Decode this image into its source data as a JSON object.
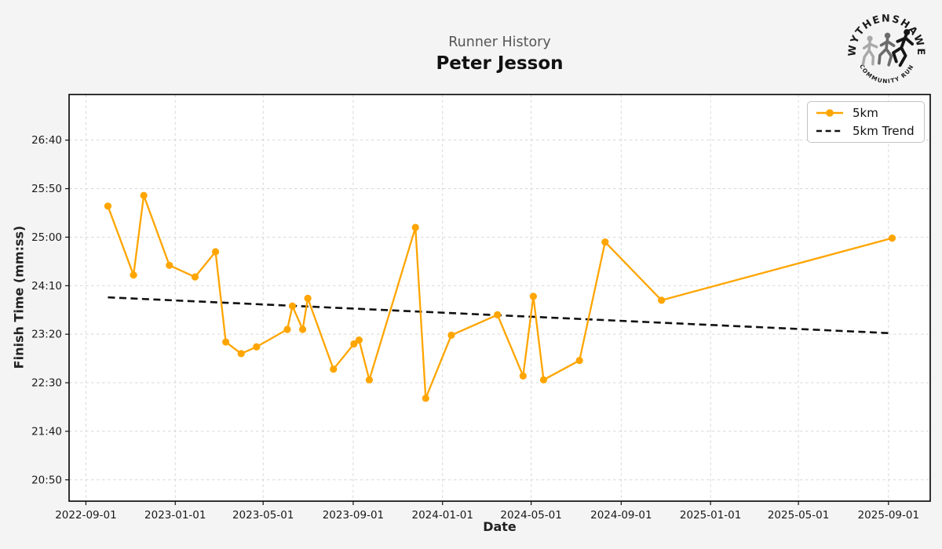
{
  "logo": {
    "arc_top_text": "WYTHENSHAWE",
    "arc_bottom_text": "COMMUNITY RUN",
    "icon": "three-runners-badge"
  },
  "chart_data": {
    "type": "line",
    "supertitle": "Runner History",
    "title": "Peter Jesson",
    "xlabel": "Date",
    "ylabel": "Finish Time (mm:ss)",
    "grid": true,
    "legend_position": "upper right",
    "x_domain": [
      "2022-08-09",
      "2025-10-28"
    ],
    "y_domain_seconds": [
      1228,
      1647
    ],
    "x_ticks": [
      "2022-09-01",
      "2023-01-01",
      "2023-05-01",
      "2023-09-01",
      "2024-01-01",
      "2024-05-01",
      "2024-09-01",
      "2025-01-01",
      "2025-05-01",
      "2025-09-01"
    ],
    "y_ticks": [
      "20:50",
      "21:40",
      "22:30",
      "23:20",
      "24:10",
      "25:00",
      "25:50",
      "26:40"
    ],
    "colors": {
      "series": "#FFA500",
      "trend": "#111111",
      "grid": "#d8d8d8",
      "figure_bg": "#f4f4f4",
      "plot_bg": "#ffffff"
    },
    "series": [
      {
        "name": "5km",
        "style": "solid-line-with-markers",
        "color": "#FFA500",
        "points": [
          [
            "2022-10-01",
            "25:32"
          ],
          [
            "2022-11-05",
            "24:21"
          ],
          [
            "2022-11-19",
            "25:43"
          ],
          [
            "2022-12-24",
            "24:31"
          ],
          [
            "2023-01-28",
            "24:19"
          ],
          [
            "2023-02-25",
            "24:45"
          ],
          [
            "2023-03-11",
            "23:12"
          ],
          [
            "2023-04-01",
            "23:00"
          ],
          [
            "2023-04-22",
            "23:07"
          ],
          [
            "2023-06-03",
            "23:25"
          ],
          [
            "2023-06-10",
            "23:49"
          ],
          [
            "2023-06-24",
            "23:25"
          ],
          [
            "2023-07-01",
            "23:57"
          ],
          [
            "2023-08-05",
            "22:44"
          ],
          [
            "2023-09-02",
            "23:10"
          ],
          [
            "2023-09-09",
            "23:14"
          ],
          [
            "2023-09-23",
            "22:33"
          ],
          [
            "2023-11-25",
            "25:10"
          ],
          [
            "2023-12-09",
            "22:14"
          ],
          [
            "2024-01-13",
            "23:19"
          ],
          [
            "2024-03-16",
            "23:40"
          ],
          [
            "2024-04-20",
            "22:37"
          ],
          [
            "2024-05-04",
            "23:59"
          ],
          [
            "2024-05-18",
            "22:33"
          ],
          [
            "2024-07-06",
            "22:53"
          ],
          [
            "2024-08-10",
            "24:55"
          ],
          [
            "2024-10-26",
            "23:55"
          ],
          [
            "2025-09-06",
            "24:59"
          ]
        ]
      },
      {
        "name": "5km Trend",
        "style": "dashed-line",
        "color": "#111111",
        "points": [
          [
            "2022-10-01",
            "23:58"
          ],
          [
            "2025-09-06",
            "23:21"
          ]
        ]
      }
    ]
  }
}
